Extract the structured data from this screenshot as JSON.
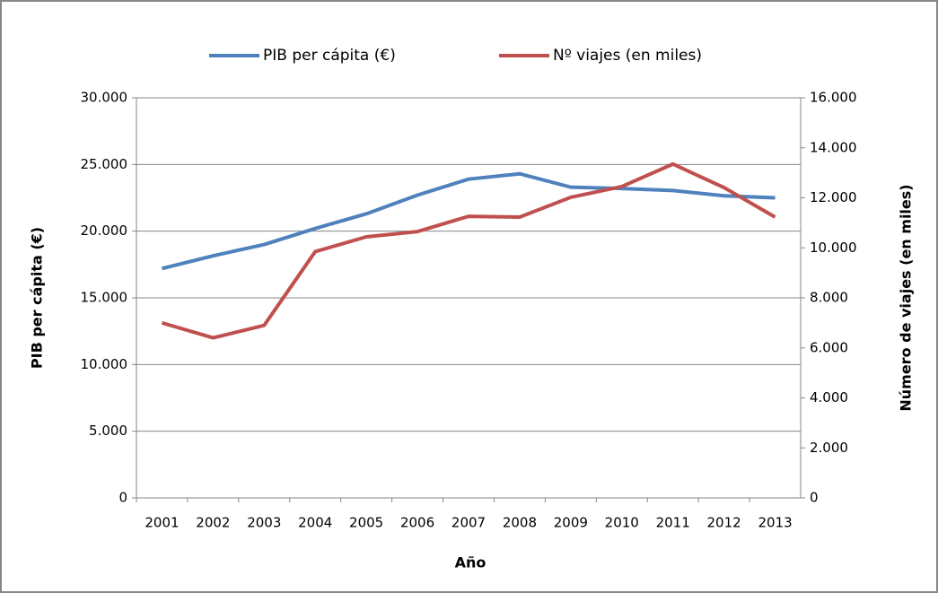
{
  "chart_data": {
    "type": "line",
    "categories": [
      "2001",
      "2002",
      "2003",
      "2004",
      "2005",
      "2006",
      "2007",
      "2008",
      "2009",
      "2010",
      "2011",
      "2012",
      "2013"
    ],
    "series": [
      {
        "name": "PIB per cápita (€)",
        "color": "#4f81bd",
        "values": [
          17200,
          18150,
          19000,
          20200,
          21300,
          22700,
          23900,
          24300,
          23300,
          23200,
          23050,
          22650,
          22500
        ]
      },
      {
        "name": "Nº viajes (en miles)",
        "color": "#c0504d",
        "axis": "y2",
        "values": [
          7000,
          6400,
          6900,
          9850,
          10440,
          10650,
          11260,
          11230,
          12020,
          12450,
          13350,
          12410,
          11230
        ]
      }
    ],
    "x_label": "Año",
    "y_label": "PIB per cápita (€)",
    "y2_label": "Número de viajes (en miles)",
    "ylim": [
      0,
      30000
    ],
    "yticks": [
      0,
      {
        "value": 5000,
        "label": "5.000"
      },
      {
        "value": 10000,
        "label": "10.000"
      },
      {
        "value": 15000,
        "label": "15.000"
      },
      {
        "value": 20000,
        "label": "20.000"
      },
      {
        "value": 25000,
        "label": "25.000"
      },
      {
        "value": 30000,
        "label": "30.000"
      }
    ],
    "y2lim": [
      0,
      16000
    ],
    "y2ticks": [
      0,
      {
        "value": 2000,
        "label": "2.000"
      },
      {
        "value": 4000,
        "label": "4.000"
      },
      {
        "value": 6000,
        "label": "6.000"
      },
      {
        "value": 8000,
        "label": "8.000"
      },
      {
        "value": 10000,
        "label": "10.000"
      },
      {
        "value": 12000,
        "label": "12.000"
      },
      {
        "value": 14000,
        "label": "14.000"
      },
      {
        "value": 16000,
        "label": "16.000"
      }
    ],
    "grid": true,
    "legend": "top"
  }
}
